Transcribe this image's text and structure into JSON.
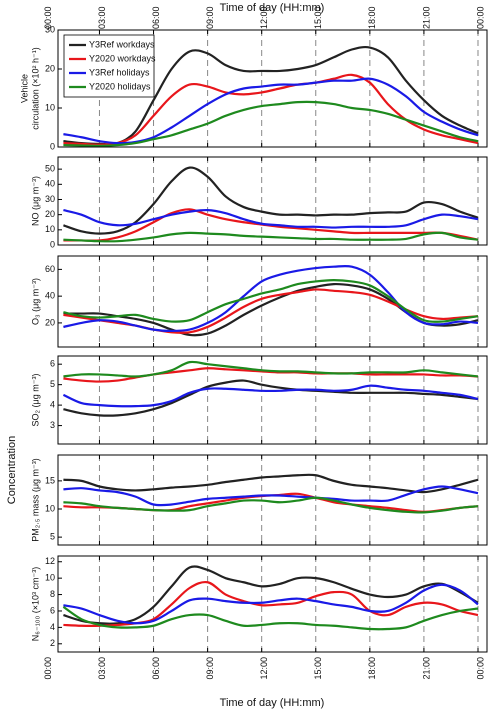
{
  "x_axis": {
    "label": "Time of  day (HH:mm)",
    "xlim": [
      0.7,
      24.5
    ],
    "xticks": [
      {
        "value": 0,
        "label": "00:00"
      },
      {
        "value": 3,
        "label": "03:00"
      },
      {
        "value": 6,
        "label": "06:00"
      },
      {
        "value": 9,
        "label": "09:00"
      },
      {
        "value": 12,
        "label": "12:00"
      },
      {
        "value": 15,
        "label": "15:00"
      },
      {
        "value": 18,
        "label": "18:00"
      },
      {
        "value": 21,
        "label": "21:00"
      },
      {
        "value": 24,
        "label": "00:00"
      }
    ],
    "x": [
      1,
      2,
      3,
      4,
      5,
      6,
      7,
      8,
      9,
      10,
      11,
      12,
      13,
      14,
      15,
      16,
      17,
      18,
      19,
      20,
      21,
      22,
      23,
      24
    ]
  },
  "y_group_label": "Concentration",
  "chart_data": [
    {
      "type": "line",
      "ylabel": [
        "Vehicle",
        "circulation (×10² h⁻¹)"
      ],
      "ylim": [
        0,
        30
      ],
      "yticks": [
        0,
        10,
        20,
        30
      ],
      "legend": "upper left",
      "series": [
        {
          "name": "Y3Ref workdays",
          "color": "#222222",
          "values": [
            1.5,
            1,
            0.8,
            1,
            4,
            12,
            20,
            24.5,
            24,
            21,
            19.5,
            19.5,
            19.5,
            20,
            21,
            23,
            25,
            25.5,
            23,
            17,
            12,
            8,
            5.5,
            3.5
          ]
        },
        {
          "name": "Y2020 workdays",
          "color": "#e8161b",
          "values": [
            1,
            0.8,
            0.6,
            1,
            3,
            8,
            13,
            16,
            15.5,
            14,
            13.5,
            14,
            15,
            16,
            16.5,
            17.5,
            18.5,
            16.5,
            11,
            7,
            4.5,
            3,
            2,
            1
          ]
        },
        {
          "name": "Y3Ref holidays",
          "color": "#1a1ae6",
          "values": [
            3.3,
            2.5,
            1.5,
            1,
            1.3,
            2.5,
            5,
            8,
            11,
            13.5,
            15,
            15.5,
            16,
            16,
            16.5,
            17,
            17,
            17.5,
            16,
            13,
            9,
            6.5,
            4.5,
            3
          ]
        },
        {
          "name": "Y2020 holidays",
          "color": "#1e8a1e",
          "values": [
            0.5,
            0.4,
            0.3,
            0.5,
            1,
            2,
            3,
            4.5,
            6,
            8,
            9.5,
            10.5,
            11,
            11.5,
            11.5,
            11,
            10,
            9.5,
            8.5,
            7,
            5.5,
            4,
            2.5,
            1.5
          ]
        }
      ]
    },
    {
      "type": "line",
      "ylabel": [
        "NO (μg m⁻³)"
      ],
      "ylim": [
        0,
        58
      ],
      "yticks": [
        0,
        10,
        20,
        30,
        40,
        50
      ],
      "series": [
        {
          "color": "#222222",
          "values": [
            13,
            9,
            7.5,
            9,
            15,
            27,
            42,
            51,
            45,
            32,
            25,
            22,
            20,
            20,
            19.5,
            20,
            20,
            21,
            21.5,
            22,
            28,
            27,
            22,
            18
          ]
        },
        {
          "color": "#e8161b",
          "values": [
            3,
            3,
            3,
            5,
            9,
            15,
            21,
            23.5,
            20,
            17,
            15,
            13.5,
            12,
            11,
            10,
            9,
            8,
            8,
            8,
            8,
            8,
            8,
            6,
            3.5
          ]
        },
        {
          "color": "#1a1ae6",
          "values": [
            23,
            20,
            15,
            13,
            14,
            17,
            20,
            22,
            23,
            21,
            17,
            14,
            13,
            12,
            12,
            11.5,
            12,
            12,
            12,
            13,
            17,
            20,
            19,
            17
          ]
        },
        {
          "color": "#1e8a1e",
          "values": [
            3.5,
            3,
            2.5,
            2.5,
            3.5,
            5,
            7,
            8,
            7.5,
            7,
            6,
            5.5,
            5,
            4.5,
            4,
            4,
            3.5,
            3.5,
            3.5,
            4,
            7,
            8,
            5,
            3.5
          ]
        }
      ]
    },
    {
      "type": "line",
      "ylabel": [
        "O₃ (μg m⁻³)"
      ],
      "ylim": [
        2,
        70
      ],
      "yticks": [
        20,
        40,
        60
      ],
      "series": [
        {
          "color": "#222222",
          "values": [
            27,
            27,
            27,
            25,
            23,
            20,
            15,
            11,
            12,
            18,
            26,
            33,
            39,
            44,
            47,
            49,
            48,
            45,
            38,
            28,
            20,
            18,
            19,
            22
          ]
        },
        {
          "color": "#e8161b",
          "values": [
            26,
            24,
            22,
            20,
            18,
            15,
            13,
            13,
            17,
            24,
            32,
            38,
            41,
            43,
            45,
            44,
            43,
            41,
            36,
            30,
            25,
            23,
            24,
            25
          ]
        },
        {
          "color": "#1a1ae6",
          "values": [
            17,
            20,
            22,
            21,
            18,
            15,
            14,
            15,
            20,
            28,
            40,
            51,
            56,
            59,
            61,
            62,
            62,
            56,
            43,
            28,
            20,
            19,
            21,
            20
          ]
        },
        {
          "color": "#1e8a1e",
          "values": [
            28,
            25,
            24,
            25,
            26,
            23,
            21,
            22,
            28,
            34,
            38,
            42,
            45,
            49,
            51,
            52,
            51,
            48,
            40,
            30,
            22,
            21,
            23,
            25
          ]
        }
      ]
    },
    {
      "type": "line",
      "ylabel": [
        "SO₂ (μg m⁻³)"
      ],
      "ylim": [
        2.1,
        6.4
      ],
      "yticks": [
        3,
        4,
        5,
        6
      ],
      "series": [
        {
          "color": "#222222",
          "values": [
            3.8,
            3.6,
            3.5,
            3.5,
            3.6,
            3.8,
            4.1,
            4.5,
            4.9,
            5.1,
            5.2,
            5,
            4.85,
            4.75,
            4.7,
            4.65,
            4.6,
            4.6,
            4.6,
            4.6,
            4.55,
            4.5,
            4.4,
            4.3
          ]
        },
        {
          "color": "#e8161b",
          "values": [
            5.3,
            5.2,
            5.15,
            5.2,
            5.35,
            5.5,
            5.6,
            5.7,
            5.8,
            5.75,
            5.7,
            5.65,
            5.6,
            5.6,
            5.55,
            5.55,
            5.55,
            5.5,
            5.5,
            5.5,
            5.5,
            5.45,
            5.45,
            5.4
          ]
        },
        {
          "color": "#1a1ae6",
          "values": [
            4.5,
            4.1,
            4,
            3.95,
            3.95,
            4,
            4.2,
            4.6,
            4.8,
            4.8,
            4.75,
            4.7,
            4.7,
            4.75,
            4.75,
            4.7,
            4.75,
            4.95,
            4.85,
            4.75,
            4.7,
            4.6,
            4.5,
            4.3
          ]
        },
        {
          "color": "#1e8a1e",
          "values": [
            5.4,
            5.5,
            5.5,
            5.45,
            5.4,
            5.5,
            5.7,
            6.1,
            6,
            5.9,
            5.8,
            5.7,
            5.65,
            5.65,
            5.6,
            5.55,
            5.55,
            5.6,
            5.6,
            5.6,
            5.7,
            5.6,
            5.5,
            5.4
          ]
        }
      ]
    },
    {
      "type": "line",
      "ylabel": [
        "PM₂.₅ mass (μg m⁻³)"
      ],
      "ylim": [
        3.6,
        19.6
      ],
      "yticks": [
        5,
        10,
        15
      ],
      "series": [
        {
          "color": "#222222",
          "values": [
            15.2,
            15,
            14,
            13.5,
            13.3,
            13.5,
            13.8,
            14,
            14.3,
            14.8,
            15.2,
            15.6,
            15.8,
            16,
            16,
            15,
            14.3,
            14,
            13.7,
            13.3,
            13,
            13.5,
            14.3,
            15.2
          ]
        },
        {
          "color": "#e8161b",
          "values": [
            10.5,
            10.3,
            10.3,
            10.2,
            10,
            9.8,
            9.8,
            10.5,
            11,
            11.5,
            12,
            12.3,
            12.5,
            12.7,
            12,
            11.2,
            10.8,
            10.5,
            10.2,
            9.8,
            9.5,
            9.8,
            10.2,
            10.5
          ]
        },
        {
          "color": "#1a1ae6",
          "values": [
            13.5,
            13.7,
            13.3,
            13,
            12.2,
            10.8,
            10.8,
            11.3,
            11.8,
            12,
            12.2,
            12.4,
            12.4,
            12.2,
            12,
            11.8,
            11.5,
            11.5,
            11.5,
            12.5,
            13.5,
            14,
            13.5,
            12.8
          ]
        },
        {
          "color": "#1e8a1e",
          "values": [
            11.2,
            11,
            10.5,
            10.2,
            10,
            9.8,
            9.7,
            9.8,
            10.5,
            11,
            11.5,
            11.5,
            11.2,
            11.5,
            12,
            11.5,
            10.8,
            10.2,
            9.8,
            9.5,
            9.4,
            9.7,
            10.2,
            10.5
          ]
        }
      ]
    },
    {
      "type": "line",
      "ylabel": [
        "N₆₋₁₀₀ (×10³ cm⁻³)"
      ],
      "ylim": [
        1,
        12.7
      ],
      "yticks": [
        2,
        4,
        6,
        8,
        10,
        12
      ],
      "series": [
        {
          "color": "#222222",
          "values": [
            5.5,
            4.8,
            4.5,
            4.5,
            5,
            6.5,
            9,
            11.3,
            11,
            10,
            9.5,
            9,
            9.3,
            10,
            10,
            9.5,
            8.7,
            8,
            7.7,
            8,
            9,
            9.3,
            8.3,
            7
          ]
        },
        {
          "color": "#e8161b",
          "values": [
            4.3,
            4.2,
            4.2,
            4.3,
            4.5,
            5,
            6.8,
            8.8,
            9.5,
            8,
            7.2,
            6.7,
            6.8,
            7,
            7.8,
            8.3,
            8,
            6,
            5.5,
            6.5,
            7,
            6.8,
            6,
            5.5
          ]
        },
        {
          "color": "#1a1ae6",
          "values": [
            6.7,
            6.3,
            5.5,
            4.8,
            4.5,
            4.8,
            6,
            7.3,
            7.5,
            7.2,
            7,
            7,
            7.3,
            7.5,
            7.2,
            6.8,
            6.5,
            6,
            6,
            7,
            8.5,
            9.2,
            8.5,
            6.8
          ]
        },
        {
          "color": "#1e8a1e",
          "values": [
            6.5,
            5,
            4.3,
            4,
            4,
            4.2,
            5,
            5.5,
            5.5,
            4.8,
            4.2,
            4.3,
            4.5,
            4.5,
            4.3,
            4.2,
            4,
            3.8,
            3.8,
            4,
            4.8,
            5.5,
            6,
            6.3
          ]
        }
      ]
    }
  ]
}
